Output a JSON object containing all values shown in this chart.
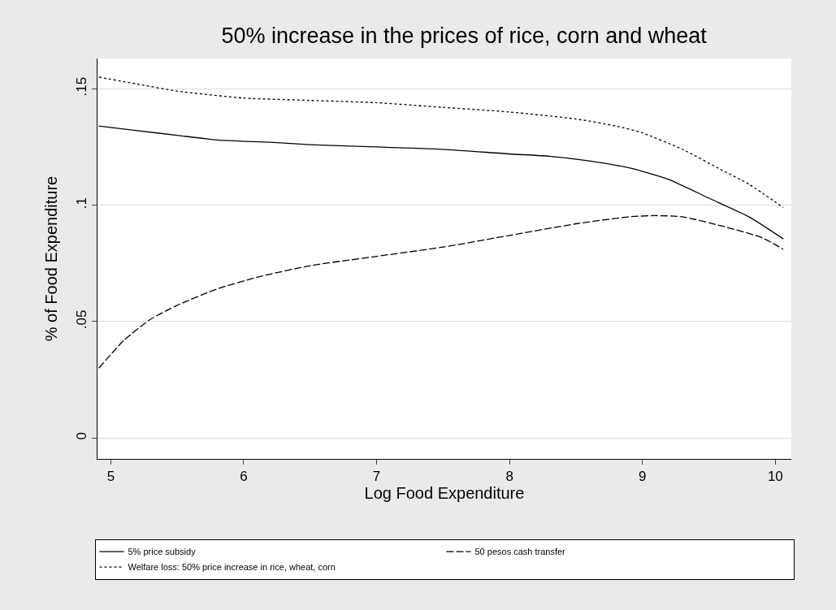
{
  "chart_data": {
    "type": "line",
    "title": "50% increase in the prices of rice, corn and wheat",
    "xlabel": "Log Food Expenditure",
    "ylabel": "% of Food Expenditure",
    "xlim": [
      4.9,
      10.12
    ],
    "xticks": [
      5,
      6,
      7,
      8,
      9,
      10
    ],
    "ylim": [
      -0.009,
      0.163
    ],
    "yticks": [
      {
        "value": 0,
        "label": "0"
      },
      {
        "value": 0.05,
        "label": ".05"
      },
      {
        "value": 0.1,
        "label": ".1"
      },
      {
        "value": 0.15,
        "label": ".15"
      }
    ],
    "grid": "y",
    "legend": "bottom",
    "marker": "none",
    "series": [
      {
        "name": "5% price subsidy",
        "color": "#000000",
        "line_style": "solid",
        "x": [
          4.91,
          5.2,
          5.5,
          5.8,
          6.2,
          6.5,
          7,
          7.5,
          8,
          8.3,
          8.6,
          8.9,
          9.2,
          9.5,
          9.8,
          10.06
        ],
        "values": [
          0.134,
          0.132,
          0.13,
          0.128,
          0.127,
          0.126,
          0.125,
          0.124,
          0.122,
          0.121,
          0.119,
          0.116,
          0.111,
          0.103,
          0.095,
          0.0855
        ]
      },
      {
        "name": "50 pesos cash transfer",
        "color": "#000000",
        "line_style": "dashed",
        "x": [
          4.91,
          5.1,
          5.3,
          5.5,
          5.8,
          6.1,
          6.5,
          7,
          7.5,
          8,
          8.5,
          8.9,
          9.1,
          9.3,
          9.6,
          9.9,
          10.06
        ],
        "values": [
          0.03,
          0.042,
          0.051,
          0.057,
          0.064,
          0.069,
          0.074,
          0.078,
          0.082,
          0.087,
          0.092,
          0.095,
          0.0955,
          0.095,
          0.091,
          0.086,
          0.081
        ]
      },
      {
        "name": "Welfare loss: 50% price increase in rice, wheat, corn",
        "color": "#000000",
        "line_style": "dotted",
        "x": [
          4.91,
          5.2,
          5.5,
          6,
          6.5,
          7,
          7.5,
          8,
          8.5,
          8.8,
          9,
          9.3,
          9.6,
          9.8,
          10.06
        ],
        "values": [
          0.155,
          0.152,
          0.149,
          0.146,
          0.145,
          0.144,
          0.142,
          0.14,
          0.137,
          0.134,
          0.131,
          0.124,
          0.115,
          0.109,
          0.099
        ]
      }
    ]
  }
}
